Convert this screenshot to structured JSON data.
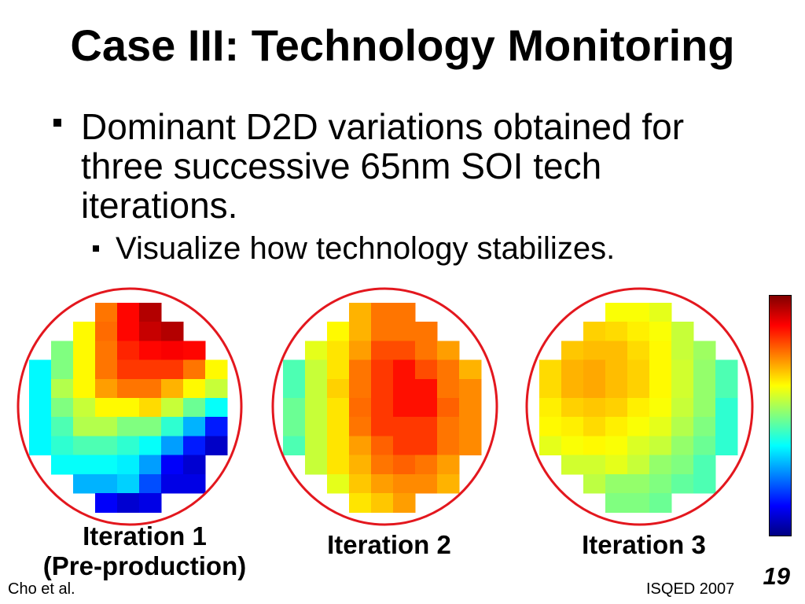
{
  "title": "Case III: Technology Monitoring",
  "bullets": [
    {
      "text": "Dominant D2D variations obtained for three successive 65nm SOI tech iterations.",
      "sub": [
        "Visualize how technology stabilizes."
      ]
    }
  ],
  "colors": {
    "outline": "#e3171e",
    "colorbar_border": "#000000"
  },
  "colorbar": {
    "colormap": "jet",
    "orientation": "vertical",
    "high_at": "top"
  },
  "chart_data": [
    {
      "type": "heatmap",
      "colormap": "jet",
      "label": "Iteration 1",
      "sublabel": "(Pre-production)",
      "values": [
        [
          null,
          null,
          null,
          0.76,
          0.87,
          0.95,
          null,
          null,
          null
        ],
        [
          null,
          null,
          0.63,
          0.77,
          0.87,
          0.93,
          0.95,
          null,
          null
        ],
        [
          null,
          0.5,
          0.63,
          0.76,
          0.84,
          0.87,
          0.88,
          0.87,
          null
        ],
        [
          0.37,
          0.5,
          0.63,
          0.76,
          0.82,
          0.82,
          0.82,
          0.76,
          0.63
        ],
        [
          0.37,
          0.55,
          0.63,
          0.72,
          0.76,
          0.76,
          0.7,
          0.63,
          0.57
        ],
        [
          0.37,
          0.5,
          0.57,
          0.63,
          0.63,
          0.66,
          0.57,
          0.48,
          0.38
        ],
        [
          0.37,
          0.45,
          0.55,
          0.55,
          0.5,
          0.5,
          0.42,
          0.3,
          0.15
        ],
        [
          0.37,
          0.42,
          0.45,
          0.45,
          0.42,
          0.38,
          0.28,
          0.15,
          0.07
        ],
        [
          null,
          0.38,
          0.38,
          0.38,
          0.36,
          0.28,
          0.12,
          0.08,
          null
        ],
        [
          null,
          null,
          0.3,
          0.3,
          0.33,
          0.2,
          0.1,
          0.1,
          null
        ],
        [
          null,
          null,
          null,
          0.12,
          0.08,
          0.1,
          null,
          null,
          null
        ]
      ]
    },
    {
      "type": "heatmap",
      "colormap": "jet",
      "label": "Iteration 2",
      "values": [
        [
          null,
          null,
          null,
          0.7,
          0.76,
          0.76,
          null,
          null,
          null
        ],
        [
          null,
          null,
          0.63,
          0.7,
          0.76,
          0.76,
          0.76,
          null,
          null
        ],
        [
          null,
          0.6,
          0.65,
          0.72,
          0.8,
          0.8,
          0.76,
          0.72,
          null
        ],
        [
          0.45,
          0.57,
          0.65,
          0.76,
          0.82,
          0.86,
          0.8,
          0.76,
          0.7
        ],
        [
          0.45,
          0.57,
          0.67,
          0.76,
          0.82,
          0.86,
          0.86,
          0.76,
          0.74
        ],
        [
          0.48,
          0.57,
          0.65,
          0.77,
          0.82,
          0.86,
          0.86,
          0.78,
          0.74
        ],
        [
          0.48,
          0.57,
          0.65,
          0.76,
          0.82,
          0.82,
          0.82,
          0.76,
          0.74
        ],
        [
          0.45,
          0.57,
          0.65,
          0.72,
          0.78,
          0.82,
          0.82,
          0.76,
          0.74
        ],
        [
          null,
          0.57,
          0.65,
          0.7,
          0.76,
          0.78,
          0.76,
          0.72,
          null
        ],
        [
          null,
          null,
          0.6,
          0.68,
          0.72,
          0.74,
          0.74,
          0.7,
          null
        ],
        [
          null,
          null,
          null,
          0.65,
          0.68,
          0.72,
          null,
          null,
          null
        ]
      ]
    },
    {
      "type": "heatmap",
      "colormap": "jet",
      "label": "Iteration 3",
      "values": [
        [
          null,
          null,
          null,
          0.62,
          0.62,
          0.6,
          null,
          null,
          null
        ],
        [
          null,
          null,
          0.67,
          0.66,
          0.64,
          0.62,
          0.57,
          null,
          null
        ],
        [
          null,
          0.68,
          0.69,
          0.69,
          0.66,
          0.63,
          0.57,
          0.53,
          null
        ],
        [
          0.66,
          0.7,
          0.71,
          0.69,
          0.67,
          0.63,
          0.58,
          0.52,
          0.45
        ],
        [
          0.66,
          0.7,
          0.71,
          0.69,
          0.67,
          0.63,
          0.58,
          0.52,
          0.45
        ],
        [
          0.64,
          0.67,
          0.68,
          0.67,
          0.64,
          0.62,
          0.57,
          0.52,
          0.42
        ],
        [
          0.63,
          0.64,
          0.66,
          0.64,
          0.62,
          0.6,
          0.55,
          0.5,
          0.42
        ],
        [
          0.6,
          0.62,
          0.63,
          0.62,
          0.59,
          0.57,
          0.52,
          0.48,
          0.42
        ],
        [
          null,
          0.58,
          0.58,
          0.6,
          0.57,
          0.52,
          0.5,
          0.45,
          null
        ],
        [
          null,
          null,
          0.56,
          0.52,
          0.52,
          0.5,
          0.47,
          0.45,
          null
        ],
        [
          null,
          null,
          null,
          0.5,
          0.5,
          0.48,
          null,
          null,
          null
        ]
      ]
    }
  ],
  "footer": {
    "left": "Cho et al.",
    "right": "ISQED 2007",
    "page_number": "19"
  }
}
